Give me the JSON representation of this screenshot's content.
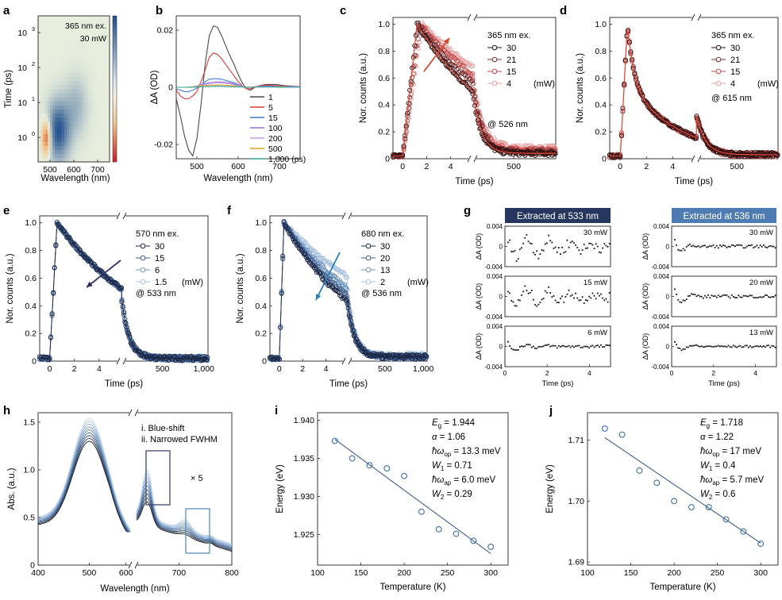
{
  "panel_labels": {
    "a": "a",
    "b": "b",
    "c": "c",
    "d": "d",
    "e": "e",
    "f": "f",
    "g": "g",
    "h": "h",
    "i": "i",
    "j": "j"
  },
  "colors": {
    "red_dark": "#2a0d0d",
    "red_mid": "#7a2f2f",
    "red_light": "#c84a4a",
    "red_pale": "#e8a0a0",
    "blue_dark": "#1c2848",
    "blue_mid": "#3f5f8f",
    "blue_light": "#6f95c0",
    "blue_pale": "#a7c2df",
    "heat_hot": "#c81e1e",
    "heat_warm": "#f1c08a",
    "heat_cold": "#1f4e8c",
    "arrow_red": "#d8442c",
    "arrow_navy": "#2b2f63",
    "arrow_blue": "#2c7fb8",
    "header_navy": "#26375f",
    "header_blue": "#4f7bb3"
  },
  "chart_data": [
    {
      "id": "a",
      "type": "heatmap",
      "title_lines": [
        "365 nm ex.",
        "30 mW"
      ],
      "xlabel": "Wavelength (nm)",
      "ylabel": "Time (ps)",
      "xlim": [
        450,
        750
      ],
      "xticks": [
        "500",
        "600",
        "700"
      ],
      "yscale": "log",
      "ylim": [
        0.2,
        3000
      ],
      "ytick_base": "10",
      "ytick_exps": [
        "0",
        "1",
        "2",
        "3"
      ],
      "features": [
        {
          "wavelength": 485,
          "log_time": 0.0,
          "sign": "positive",
          "strength": 1.0
        },
        {
          "wavelength": 535,
          "log_time": 0.2,
          "sign": "negative",
          "strength": 0.95
        },
        {
          "wavelength": 610,
          "log_time": 0.9,
          "sign": "negative",
          "strength": 0.35
        }
      ]
    },
    {
      "id": "b",
      "type": "line",
      "xlabel": "Wavelength (nm)",
      "ylabel": "ΔA (OD)",
      "xlim": [
        450,
        750
      ],
      "ylim": [
        -0.025,
        0.025
      ],
      "xticks": [
        "500",
        "600",
        "700"
      ],
      "yticks": [
        "0.02",
        "0",
        "-0.02"
      ],
      "x": [
        450,
        460,
        470,
        480,
        490,
        500,
        510,
        520,
        530,
        540,
        550,
        560,
        570,
        580,
        590,
        600,
        610,
        620,
        630,
        640,
        650,
        660,
        670,
        680,
        690,
        700,
        710,
        720,
        730,
        740,
        750
      ],
      "series": [
        {
          "name": "1",
          "color": "#4a4a4a",
          "values": [
            -0.004,
            -0.01,
            -0.017,
            -0.022,
            -0.024,
            -0.018,
            -0.006,
            0.008,
            0.018,
            0.0215,
            0.021,
            0.018,
            0.0145,
            0.011,
            0.008,
            0.0045,
            0.0015,
            -0.0005,
            -0.001,
            0.0,
            0.0005,
            0.0008,
            0.001,
            0.001,
            0.001,
            0.0008,
            0.0006,
            0.0005,
            0.0004,
            0.0003,
            0.0003
          ]
        },
        {
          "name": "5",
          "color": "#d93a3a",
          "values": [
            -0.001,
            -0.003,
            -0.004,
            -0.004,
            -0.003,
            -0.0015,
            0.002,
            0.006,
            0.0105,
            0.012,
            0.0115,
            0.01,
            0.008,
            0.006,
            0.004,
            0.002,
            0.0005,
            -0.0005,
            -0.0005,
            0.0,
            0.0005,
            0.0006,
            0.0007,
            0.0007,
            0.0006,
            0.0005,
            0.0004,
            0.0003,
            0.0003,
            0.0002,
            0.0002
          ]
        },
        {
          "name": "15",
          "color": "#3f7fd9",
          "values": [
            -0.0005,
            -0.001,
            -0.0015,
            -0.0015,
            -0.001,
            -0.0003,
            0.0008,
            0.002,
            0.0028,
            0.003,
            0.003,
            0.0028,
            0.0024,
            0.002,
            0.0016,
            0.001,
            0.0004,
            0.0,
            0.0,
            0.0002,
            0.0003,
            0.0004,
            0.0004,
            0.0004,
            0.0004,
            0.0003,
            0.0003,
            0.0002,
            0.0002,
            0.0002,
            0.0001
          ]
        },
        {
          "name": "100",
          "color": "#9a6fd0",
          "values": [
            0.0,
            0.0,
            0.0,
            0.0,
            0.0002,
            0.0005,
            0.0009,
            0.0013,
            0.0016,
            0.0018,
            0.0019,
            0.0019,
            0.0017,
            0.0015,
            0.0012,
            0.0008,
            0.0004,
            0.0001,
            0.0001,
            0.0002,
            0.0003,
            0.0003,
            0.0003,
            0.0003,
            0.0003,
            0.0002,
            0.0002,
            0.0002,
            0.0001,
            0.0001,
            0.0001
          ]
        },
        {
          "name": "200",
          "color": "#c99be8",
          "values": [
            0.0,
            0.0,
            0.0,
            0.0001,
            0.0002,
            0.0004,
            0.0007,
            0.001,
            0.0012,
            0.0014,
            0.0015,
            0.0015,
            0.0014,
            0.0012,
            0.0009,
            0.0006,
            0.0003,
            0.0001,
            0.0001,
            0.0001,
            0.0002,
            0.0002,
            0.0002,
            0.0002,
            0.0002,
            0.0002,
            0.0001,
            0.0001,
            0.0001,
            0.0001,
            0.0001
          ]
        },
        {
          "name": "500",
          "color": "#e2a21a",
          "values": [
            0.0,
            0.0,
            0.0,
            0.0,
            0.0001,
            0.0003,
            0.0005,
            0.0006,
            0.0007,
            0.0008,
            0.0008,
            0.0008,
            0.0007,
            0.0006,
            0.0005,
            0.0003,
            0.0002,
            0.0001,
            0.0,
            0.0001,
            0.0001,
            0.0001,
            0.0001,
            0.0001,
            0.0001,
            0.0001,
            0.0001,
            0.0,
            0.0,
            0.0,
            0.0
          ]
        },
        {
          "name": "1,000 (ps)",
          "color": "#2aa7a0",
          "values": [
            0.0,
            0.0,
            0.0,
            0.0,
            0.0,
            0.0001,
            0.0002,
            0.0003,
            0.0003,
            0.0004,
            0.0004,
            0.0004,
            0.0003,
            0.0003,
            0.0002,
            0.0002,
            0.0001,
            0.0,
            0.0,
            0.0,
            0.0001,
            0.0001,
            0.0001,
            0.0001,
            0.0001,
            0.0,
            0.0,
            0.0,
            0.0,
            0.0,
            0.0
          ]
        }
      ]
    },
    {
      "id": "c",
      "type": "scatter",
      "xlabel": "Time (ps)",
      "ylabel": "Nor. counts (a.u.)",
      "legend_title": "365 nm ex.",
      "legend_unit": "(mW)",
      "annotation": "@ 526 nm",
      "ylim": [
        0,
        1.05
      ],
      "yticks": [
        "0",
        "0.2",
        "0.4",
        "0.6",
        "0.8",
        "1.0"
      ],
      "xticks_left": [
        "0",
        "2",
        "4"
      ],
      "xticks_right": [
        "500"
      ],
      "xlim_left": [
        -0.8,
        5.8
      ],
      "xlim_right": [
        5.8,
        1000
      ],
      "fit": true,
      "series": [
        {
          "name": "30",
          "color": "#2a0d0d",
          "peak_time": 1.2,
          "decay_ps": 6.8,
          "tail_amp": 0.48,
          "tail_tau": 100,
          "long_amp": 0.04
        },
        {
          "name": "21",
          "color": "#7a2f2f",
          "peak_time": 1.3,
          "decay_ps": 8.0,
          "tail_amp": 0.52,
          "tail_tau": 105,
          "long_amp": 0.05
        },
        {
          "name": "15",
          "color": "#c84a4a",
          "peak_time": 1.45,
          "decay_ps": 9.4,
          "tail_amp": 0.54,
          "tail_tau": 110,
          "long_amp": 0.06
        },
        {
          "name": "4",
          "color": "#e8a0a0",
          "peak_time": 1.6,
          "decay_ps": 11.0,
          "tail_amp": 0.55,
          "tail_tau": 115,
          "long_amp": 0.08
        }
      ]
    },
    {
      "id": "d",
      "type": "scatter",
      "xlabel": "Time (ps)",
      "ylabel": "Nor. counts (a.u.)",
      "legend_title": "365 nm ex.",
      "legend_unit": "(mW)",
      "annotation": "@ 615 nm",
      "ylim": [
        0,
        1.05
      ],
      "yticks": [
        "0",
        "0.2",
        "0.4",
        "0.6",
        "0.8",
        "1.0"
      ],
      "xticks_left": [
        "0",
        "2",
        "4"
      ],
      "xticks_right": [
        "500"
      ],
      "xlim_left": [
        -0.8,
        5.8
      ],
      "xlim_right": [
        5.8,
        1000
      ],
      "fit": true,
      "series": [
        {
          "name": "30",
          "color": "#2a0d0d",
          "peak_time": 0.55,
          "fast_amp": 0.45,
          "fast_tau": 0.5,
          "slow_tau": 4.2,
          "tail_amp": 0.3,
          "tail_tau": 110,
          "long_amp": 0.03
        },
        {
          "name": "21",
          "color": "#7a2f2f",
          "peak_time": 0.55,
          "fast_amp": 0.45,
          "fast_tau": 0.5,
          "slow_tau": 4.2,
          "tail_amp": 0.3,
          "tail_tau": 110,
          "long_amp": 0.03
        },
        {
          "name": "15",
          "color": "#c84a4a",
          "peak_time": 0.55,
          "fast_amp": 0.45,
          "fast_tau": 0.5,
          "slow_tau": 4.2,
          "tail_amp": 0.3,
          "tail_tau": 110,
          "long_amp": 0.03
        },
        {
          "name": "4",
          "color": "#e8a0a0",
          "peak_time": 0.55,
          "fast_amp": 0.45,
          "fast_tau": 0.5,
          "slow_tau": 4.2,
          "tail_amp": 0.3,
          "tail_tau": 110,
          "long_amp": 0.03
        }
      ]
    },
    {
      "id": "e",
      "type": "scatter",
      "xlabel": "Time (ps)",
      "ylabel": "Nor. counts (a.u.)",
      "legend_title": "570 nm ex.",
      "legend_unit": "(mW)",
      "annotation": "@ 533 nm",
      "ylim": [
        0,
        1.05
      ],
      "yticks": [
        "0",
        "0.2",
        "0.4",
        "0.6",
        "0.8",
        "1.0"
      ],
      "xticks_left": [
        "0",
        "2",
        "4"
      ],
      "xticks_right": [
        "500",
        "1,000"
      ],
      "xlim_left": [
        -0.8,
        5.8
      ],
      "xlim_right": [
        5.8,
        1050
      ],
      "fit": false,
      "series": [
        {
          "name": "30",
          "color": "#1c2848",
          "peak_time": 0.6,
          "decay_ps": 8.0,
          "tail_amp": 0.44,
          "tail_tau": 90,
          "long_amp": 0.02
        },
        {
          "name": "15",
          "color": "#3f5f8f",
          "peak_time": 0.6,
          "decay_ps": 8.0,
          "tail_amp": 0.44,
          "tail_tau": 90,
          "long_amp": 0.02
        },
        {
          "name": "6",
          "color": "#6f95c0",
          "peak_time": 0.6,
          "decay_ps": 8.0,
          "tail_amp": 0.44,
          "tail_tau": 90,
          "long_amp": 0.02
        },
        {
          "name": "1.5",
          "color": "#a7c2df",
          "peak_time": 0.6,
          "decay_ps": 8.0,
          "tail_amp": 0.44,
          "tail_tau": 90,
          "long_amp": 0.02
        }
      ]
    },
    {
      "id": "f",
      "type": "scatter",
      "xlabel": "Time (ps)",
      "ylabel": "Nor. counts (a.u.)",
      "legend_title": "680 nm ex.",
      "legend_unit": "(mW)",
      "annotation": "@ 536 nm",
      "ylim": [
        0,
        1.05
      ],
      "yticks": [
        "0",
        "0.2",
        "0.4",
        "0.6",
        "0.8",
        "1.0"
      ],
      "xticks_left": [
        "0",
        "2",
        "4"
      ],
      "xticks_right": [
        "500",
        "1,000"
      ],
      "xlim_left": [
        -0.8,
        5.8
      ],
      "xlim_right": [
        5.8,
        1050
      ],
      "fit": false,
      "series": [
        {
          "name": "30",
          "color": "#1c2848",
          "peak_time": 0.4,
          "decay_ps": 6.5,
          "tail_amp": 0.42,
          "tail_tau": 95,
          "long_amp": 0.03
        },
        {
          "name": "20",
          "color": "#3f5f8f",
          "peak_time": 0.4,
          "decay_ps": 7.4,
          "tail_amp": 0.44,
          "tail_tau": 95,
          "long_amp": 0.03
        },
        {
          "name": "13",
          "color": "#6f95c0",
          "peak_time": 0.4,
          "decay_ps": 8.6,
          "tail_amp": 0.46,
          "tail_tau": 95,
          "long_amp": 0.03
        },
        {
          "name": "2",
          "color": "#a7c2df",
          "peak_time": 0.4,
          "decay_ps": 11.0,
          "tail_amp": 0.48,
          "tail_tau": 95,
          "long_amp": 0.04
        }
      ]
    },
    {
      "id": "g",
      "type": "scatter",
      "headers": [
        "Extracted at 533 nm",
        "Extracted at 536 nm"
      ],
      "ylabel": "ΔA (OD)",
      "xlabel": "Time (ps)",
      "xlim": [
        0,
        5
      ],
      "ylim": [
        -0.004,
        0.004
      ],
      "xticks": [
        "0",
        "2",
        "4"
      ],
      "yticks": [
        "0.004",
        "0",
        "-0.004"
      ],
      "subplots": [
        {
          "col": 0,
          "row": 0,
          "label": "30 mW",
          "amp": 0.0022,
          "noise": 0.0011,
          "decay": 3.0
        },
        {
          "col": 0,
          "row": 1,
          "label": "15 mW",
          "amp": 0.002,
          "noise": 0.0009,
          "decay": 3.0
        },
        {
          "col": 0,
          "row": 2,
          "label": "6 mW",
          "amp": 0.0012,
          "noise": 0.0003,
          "decay": 0.8
        },
        {
          "col": 1,
          "row": 0,
          "label": "30 mW",
          "amp": 0.0028,
          "noise": 0.0003,
          "decay": 0.4
        },
        {
          "col": 1,
          "row": 1,
          "label": "20 mW",
          "amp": 0.0026,
          "noise": 0.0003,
          "decay": 0.5
        },
        {
          "col": 1,
          "row": 2,
          "label": "13 mW",
          "amp": 0.0022,
          "noise": 0.0002,
          "decay": 0.4
        }
      ]
    },
    {
      "id": "h",
      "type": "line",
      "xlabel": "Wavelength (nm)",
      "ylabel": "Abs. (a.u.)",
      "ylim": [
        0,
        1.6
      ],
      "yticks": [
        "0",
        "0.5",
        "1.0",
        "1.5"
      ],
      "xticks": [
        "400",
        "500",
        "600",
        "700",
        "800"
      ],
      "xlim_left": [
        400,
        580
      ],
      "xlim_right": [
        620,
        800
      ],
      "notes": [
        "i. Blue-shift",
        "ii. Narrowed FWHM"
      ],
      "zoom_label": "× 5",
      "series": [
        {
          "name": "s1",
          "color": "#1c1c1c",
          "peak": 1.3,
          "base": 0.48
        },
        {
          "name": "s2",
          "color": "#2a3a52",
          "peak": 1.32,
          "base": 0.49
        },
        {
          "name": "s3",
          "color": "#344b70",
          "peak": 1.34,
          "base": 0.5
        },
        {
          "name": "s4",
          "color": "#3f5f8f",
          "peak": 1.36,
          "base": 0.51
        },
        {
          "name": "s5",
          "color": "#5479a8",
          "peak": 1.38,
          "base": 0.52
        },
        {
          "name": "s6",
          "color": "#6f95c0",
          "peak": 1.4,
          "base": 0.53
        },
        {
          "name": "s7",
          "color": "#8aaed2",
          "peak": 1.42,
          "base": 0.54
        },
        {
          "name": "s8",
          "color": "#a7c2df",
          "peak": 1.44,
          "base": 0.55
        },
        {
          "name": "s9",
          "color": "#c3d6ea",
          "peak": 1.46,
          "base": 0.56
        }
      ]
    },
    {
      "id": "i",
      "type": "scatter",
      "xlabel": "Temperature (K)",
      "ylabel": "Energy (eV)",
      "xlim": [
        100,
        320
      ],
      "ylim": [
        1.921,
        1.941
      ],
      "xticks": [
        "100",
        "150",
        "200",
        "250",
        "300"
      ],
      "yticks": [
        "1.925",
        "1.930",
        "1.935",
        "1.940"
      ],
      "x": [
        120,
        140,
        160,
        180,
        200,
        220,
        240,
        260,
        280,
        300
      ],
      "y": [
        1.9373,
        1.935,
        1.9341,
        1.9337,
        1.9327,
        1.928,
        1.9257,
        1.9251,
        1.9242,
        1.9234
      ],
      "fit_line": {
        "x": [
          120,
          300
        ],
        "y": [
          1.9375,
          1.9225
        ]
      },
      "params": [
        {
          "sym": "E",
          "sub": "g",
          "value": " = 1.944"
        },
        {
          "sym": "α",
          "sub": "",
          "value": " = 1.06"
        },
        {
          "sym": "ħω",
          "sub": "op",
          "value": " = 13.3 meV"
        },
        {
          "sym": "W",
          "sub": "1",
          "value": " = 0.71"
        },
        {
          "sym": "ħω",
          "sub": "ap",
          "value": " = 6.0 meV"
        },
        {
          "sym": "W",
          "sub": "2",
          "value": " = 0.29"
        }
      ]
    },
    {
      "id": "j",
      "type": "scatter",
      "xlabel": "Temperature (K)",
      "ylabel": "Energy (eV)",
      "xlim": [
        100,
        320
      ],
      "ylim": [
        1.6895,
        1.7145
      ],
      "xticks": [
        "100",
        "150",
        "200",
        "250",
        "300"
      ],
      "yticks": [
        "1.69",
        "1.70",
        "1.71"
      ],
      "x": [
        120,
        140,
        160,
        180,
        200,
        220,
        240,
        260,
        280,
        300
      ],
      "y": [
        1.7119,
        1.7109,
        1.705,
        1.703,
        1.7,
        1.699,
        1.699,
        1.697,
        1.695,
        1.693
      ],
      "fit_line": {
        "x": [
          120,
          300
        ],
        "y": [
          1.7104,
          1.6931
        ]
      },
      "params": [
        {
          "sym": "E",
          "sub": "g",
          "value": " = 1.718"
        },
        {
          "sym": "α",
          "sub": "",
          "value": " = 1.22"
        },
        {
          "sym": "ħω",
          "sub": "op",
          "value": " = 17 meV"
        },
        {
          "sym": "W",
          "sub": "1",
          "value": " = 0.4"
        },
        {
          "sym": "ħω",
          "sub": "ap",
          "value": " = 5.7 meV"
        },
        {
          "sym": "W",
          "sub": "2",
          "value": " = 0.6"
        }
      ]
    }
  ]
}
